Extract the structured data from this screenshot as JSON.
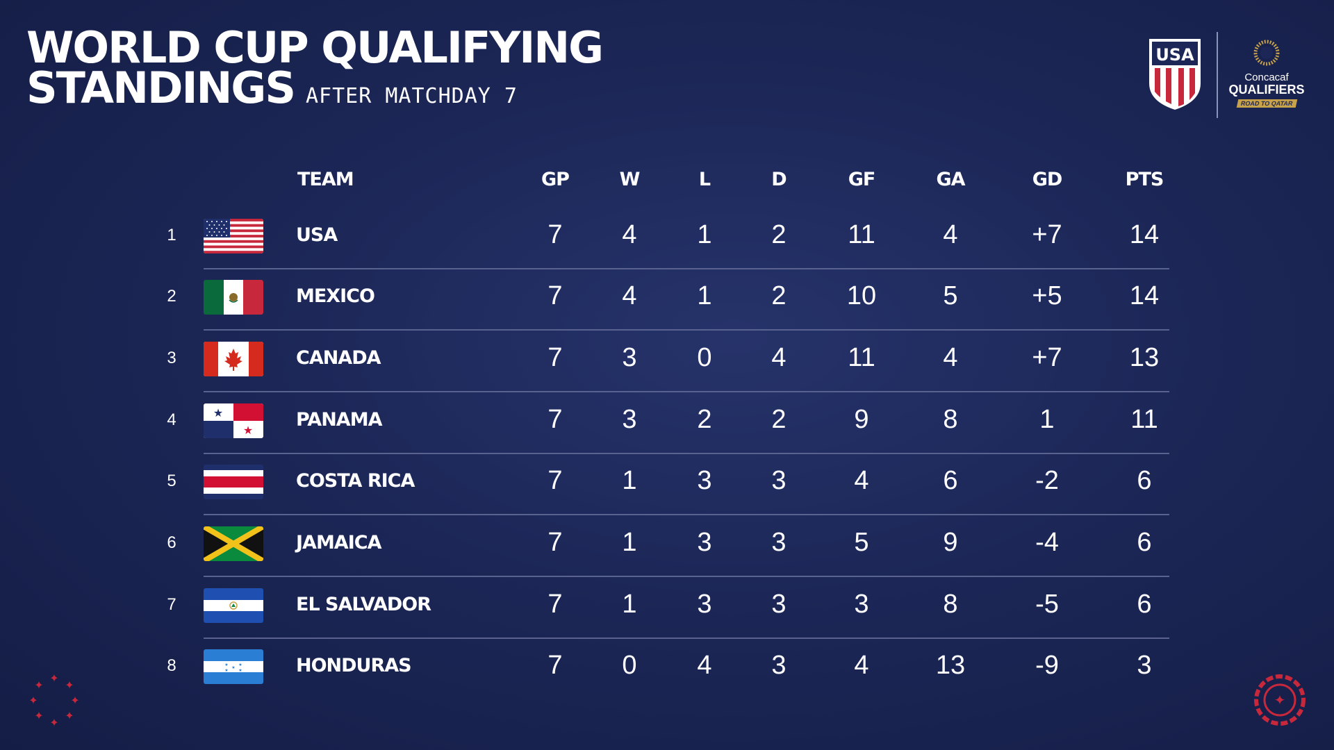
{
  "header": {
    "title_line1": "WORLD CUP QUALIFYING",
    "title_line2": "STANDINGS",
    "subtitle": "AFTER MATCHDAY 7"
  },
  "logos": {
    "ussf_text": "USA",
    "cq_line1": "Concacaf",
    "cq_line2": "QUALIFIERS",
    "cq_line3": "ROAD TO QATAR"
  },
  "columns": [
    "TEAM",
    "GP",
    "W",
    "L",
    "D",
    "GF",
    "GA",
    "GD",
    "PTS"
  ],
  "rows": [
    {
      "rank": "1",
      "team": "USA",
      "flag": "usa-flag",
      "gp": "7",
      "w": "4",
      "l": "1",
      "d": "2",
      "gf": "11",
      "ga": "4",
      "gd": "+7",
      "pts": "14"
    },
    {
      "rank": "2",
      "team": "MEXICO",
      "flag": "mexico-flag",
      "gp": "7",
      "w": "4",
      "l": "1",
      "d": "2",
      "gf": "10",
      "ga": "5",
      "gd": "+5",
      "pts": "14"
    },
    {
      "rank": "3",
      "team": "CANADA",
      "flag": "canada-flag",
      "gp": "7",
      "w": "3",
      "l": "0",
      "d": "4",
      "gf": "11",
      "ga": "4",
      "gd": "+7",
      "pts": "13"
    },
    {
      "rank": "4",
      "team": "PANAMA",
      "flag": "panama-flag",
      "gp": "7",
      "w": "3",
      "l": "2",
      "d": "2",
      "gf": "9",
      "ga": "8",
      "gd": "1",
      "pts": "11"
    },
    {
      "rank": "5",
      "team": "COSTA RICA",
      "flag": "costa-rica-flag",
      "gp": "7",
      "w": "1",
      "l": "3",
      "d": "3",
      "gf": "4",
      "ga": "6",
      "gd": "-2",
      "pts": "6"
    },
    {
      "rank": "6",
      "team": "JAMAICA",
      "flag": "jamaica-flag",
      "gp": "7",
      "w": "1",
      "l": "3",
      "d": "3",
      "gf": "5",
      "ga": "9",
      "gd": "-4",
      "pts": "6"
    },
    {
      "rank": "7",
      "team": "EL SALVADOR",
      "flag": "el-salvador-flag",
      "gp": "7",
      "w": "1",
      "l": "3",
      "d": "3",
      "gf": "3",
      "ga": "8",
      "gd": "-5",
      "pts": "6"
    },
    {
      "rank": "8",
      "team": "HONDURAS",
      "flag": "honduras-flag",
      "gp": "7",
      "w": "0",
      "l": "4",
      "d": "3",
      "gf": "4",
      "ga": "13",
      "gd": "-9",
      "pts": "3"
    }
  ],
  "colors": {
    "background": "#1c2757",
    "accent_red": "#c8283c",
    "gold": "#c8a24a",
    "divider": "#5a6390"
  }
}
